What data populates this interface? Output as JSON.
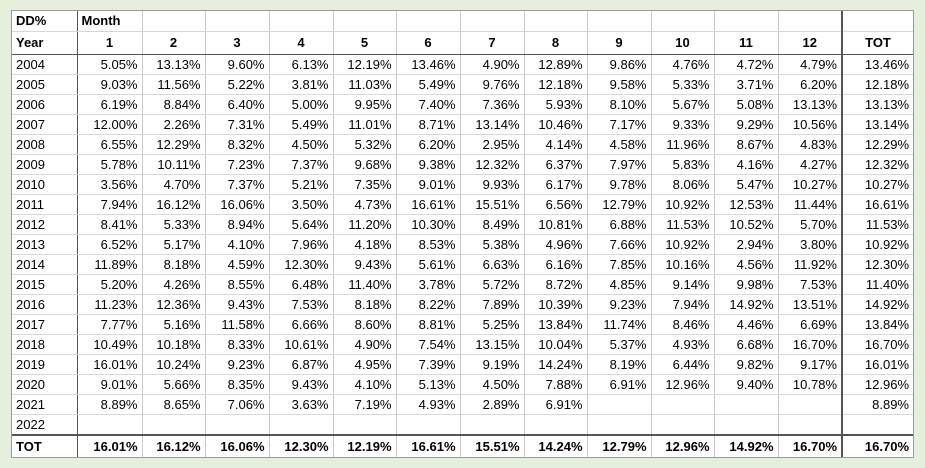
{
  "corner_label": "DD%",
  "month_label": "Month",
  "year_label": "Year",
  "tot_label": "TOT",
  "months": [
    "1",
    "2",
    "3",
    "4",
    "5",
    "6",
    "7",
    "8",
    "9",
    "10",
    "11",
    "12"
  ],
  "rows": [
    {
      "year": "2004",
      "values": [
        "5.05%",
        "13.13%",
        "9.60%",
        "6.13%",
        "12.19%",
        "13.46%",
        "4.90%",
        "12.89%",
        "9.86%",
        "4.76%",
        "4.72%",
        "4.79%"
      ],
      "tot": "13.46%"
    },
    {
      "year": "2005",
      "values": [
        "9.03%",
        "11.56%",
        "5.22%",
        "3.81%",
        "11.03%",
        "5.49%",
        "9.76%",
        "12.18%",
        "9.58%",
        "5.33%",
        "3.71%",
        "6.20%"
      ],
      "tot": "12.18%"
    },
    {
      "year": "2006",
      "values": [
        "6.19%",
        "8.84%",
        "6.40%",
        "5.00%",
        "9.95%",
        "7.40%",
        "7.36%",
        "5.93%",
        "8.10%",
        "5.67%",
        "5.08%",
        "13.13%"
      ],
      "tot": "13.13%"
    },
    {
      "year": "2007",
      "values": [
        "12.00%",
        "2.26%",
        "7.31%",
        "5.49%",
        "11.01%",
        "8.71%",
        "13.14%",
        "10.46%",
        "7.17%",
        "9.33%",
        "9.29%",
        "10.56%"
      ],
      "tot": "13.14%"
    },
    {
      "year": "2008",
      "values": [
        "6.55%",
        "12.29%",
        "8.32%",
        "4.50%",
        "5.32%",
        "6.20%",
        "2.95%",
        "4.14%",
        "4.58%",
        "11.96%",
        "8.67%",
        "4.83%"
      ],
      "tot": "12.29%"
    },
    {
      "year": "2009",
      "values": [
        "5.78%",
        "10.11%",
        "7.23%",
        "7.37%",
        "9.68%",
        "9.38%",
        "12.32%",
        "6.37%",
        "7.97%",
        "5.83%",
        "4.16%",
        "4.27%"
      ],
      "tot": "12.32%"
    },
    {
      "year": "2010",
      "values": [
        "3.56%",
        "4.70%",
        "7.37%",
        "5.21%",
        "7.35%",
        "9.01%",
        "9.93%",
        "6.17%",
        "9.78%",
        "8.06%",
        "5.47%",
        "10.27%"
      ],
      "tot": "10.27%"
    },
    {
      "year": "2011",
      "values": [
        "7.94%",
        "16.12%",
        "16.06%",
        "3.50%",
        "4.73%",
        "16.61%",
        "15.51%",
        "6.56%",
        "12.79%",
        "10.92%",
        "12.53%",
        "11.44%"
      ],
      "tot": "16.61%"
    },
    {
      "year": "2012",
      "values": [
        "8.41%",
        "5.33%",
        "8.94%",
        "5.64%",
        "11.20%",
        "10.30%",
        "8.49%",
        "10.81%",
        "6.88%",
        "11.53%",
        "10.52%",
        "5.70%"
      ],
      "tot": "11.53%"
    },
    {
      "year": "2013",
      "values": [
        "6.52%",
        "5.17%",
        "4.10%",
        "7.96%",
        "4.18%",
        "8.53%",
        "5.38%",
        "4.96%",
        "7.66%",
        "10.92%",
        "2.94%",
        "3.80%"
      ],
      "tot": "10.92%"
    },
    {
      "year": "2014",
      "values": [
        "11.89%",
        "8.18%",
        "4.59%",
        "12.30%",
        "9.43%",
        "5.61%",
        "6.63%",
        "6.16%",
        "7.85%",
        "10.16%",
        "4.56%",
        "11.92%"
      ],
      "tot": "12.30%"
    },
    {
      "year": "2015",
      "values": [
        "5.20%",
        "4.26%",
        "8.55%",
        "6.48%",
        "11.40%",
        "3.78%",
        "5.72%",
        "8.72%",
        "4.85%",
        "9.14%",
        "9.98%",
        "7.53%"
      ],
      "tot": "11.40%"
    },
    {
      "year": "2016",
      "values": [
        "11.23%",
        "12.36%",
        "9.43%",
        "7.53%",
        "8.18%",
        "8.22%",
        "7.89%",
        "10.39%",
        "9.23%",
        "7.94%",
        "14.92%",
        "13.51%"
      ],
      "tot": "14.92%"
    },
    {
      "year": "2017",
      "values": [
        "7.77%",
        "5.16%",
        "11.58%",
        "6.66%",
        "8.60%",
        "8.81%",
        "5.25%",
        "13.84%",
        "11.74%",
        "8.46%",
        "4.46%",
        "6.69%"
      ],
      "tot": "13.84%"
    },
    {
      "year": "2018",
      "values": [
        "10.49%",
        "10.18%",
        "8.33%",
        "10.61%",
        "4.90%",
        "7.54%",
        "13.15%",
        "10.04%",
        "5.37%",
        "4.93%",
        "6.68%",
        "16.70%"
      ],
      "tot": "16.70%"
    },
    {
      "year": "2019",
      "values": [
        "16.01%",
        "10.24%",
        "9.23%",
        "6.87%",
        "4.95%",
        "7.39%",
        "9.19%",
        "14.24%",
        "8.19%",
        "6.44%",
        "9.82%",
        "9.17%"
      ],
      "tot": "16.01%"
    },
    {
      "year": "2020",
      "values": [
        "9.01%",
        "5.66%",
        "8.35%",
        "9.43%",
        "4.10%",
        "5.13%",
        "4.50%",
        "7.88%",
        "6.91%",
        "12.96%",
        "9.40%",
        "10.78%"
      ],
      "tot": "12.96%"
    },
    {
      "year": "2021",
      "values": [
        "8.89%",
        "8.65%",
        "7.06%",
        "3.63%",
        "7.19%",
        "4.93%",
        "2.89%",
        "6.91%",
        "",
        "",
        "",
        ""
      ],
      "tot": "8.89%"
    },
    {
      "year": "2022",
      "values": [
        "",
        "",
        "",
        "",
        "",
        "",
        "",
        "",
        "",
        "",
        "",
        ""
      ],
      "tot": ""
    }
  ],
  "totals": {
    "label": "TOT",
    "values": [
      "16.01%",
      "16.12%",
      "16.06%",
      "12.30%",
      "12.19%",
      "16.61%",
      "15.51%",
      "14.24%",
      "12.79%",
      "12.96%",
      "14.92%",
      "16.70%"
    ],
    "tot": "16.70%"
  }
}
